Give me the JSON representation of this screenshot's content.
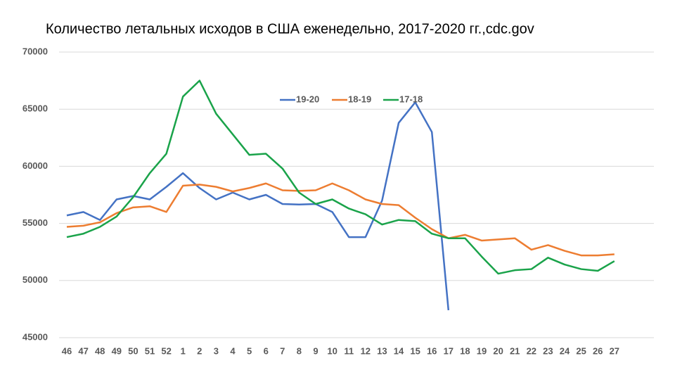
{
  "chart_data": {
    "type": "line",
    "title": "Количество летальных исходов в США еженедельно, 2017-2020 гг.,cdc.gov",
    "categories": [
      "46",
      "47",
      "48",
      "49",
      "50",
      "51",
      "52",
      "1",
      "2",
      "3",
      "4",
      "5",
      "6",
      "7",
      "8",
      "9",
      "10",
      "11",
      "12",
      "13",
      "14",
      "15",
      "16",
      "17",
      "18",
      "19",
      "20",
      "21",
      "22",
      "23",
      "24",
      "25",
      "26",
      "27"
    ],
    "series": [
      {
        "name": "19-20",
        "color": "#4472c4",
        "values": [
          55700,
          56000,
          55300,
          57100,
          57400,
          57100,
          58200,
          59400,
          58100,
          57100,
          57700,
          57100,
          57500,
          56700,
          56650,
          56700,
          56000,
          53800,
          53800,
          57000,
          63800,
          65600,
          63000,
          47400,
          null,
          null,
          null,
          null,
          null,
          null,
          null,
          null,
          null,
          null
        ]
      },
      {
        "name": "18-19",
        "color": "#ed7d31",
        "values": [
          54700,
          54800,
          55100,
          55900,
          56400,
          56500,
          56000,
          58300,
          58400,
          58200,
          57800,
          58100,
          58500,
          57900,
          57850,
          57900,
          58500,
          57900,
          57100,
          56700,
          56600,
          55500,
          54500,
          53700,
          54000,
          53500,
          53600,
          53700,
          52700,
          53100,
          52600,
          52200,
          52200,
          52300
        ]
      },
      {
        "name": "17-18",
        "color": "#1aa34a",
        "values": [
          53800,
          54100,
          54700,
          55600,
          57300,
          59400,
          61100,
          66100,
          67500,
          64600,
          62800,
          61000,
          61100,
          59800,
          57700,
          56700,
          57100,
          56300,
          55800,
          54900,
          55300,
          55200,
          54100,
          53700,
          53700,
          52100,
          50600,
          50900,
          51000,
          52000,
          51400,
          51000,
          50850,
          51700
        ]
      }
    ],
    "ylim": [
      45000,
      70000
    ],
    "yticks": [
      45000,
      50000,
      55000,
      60000,
      65000,
      70000
    ],
    "grid": true
  }
}
